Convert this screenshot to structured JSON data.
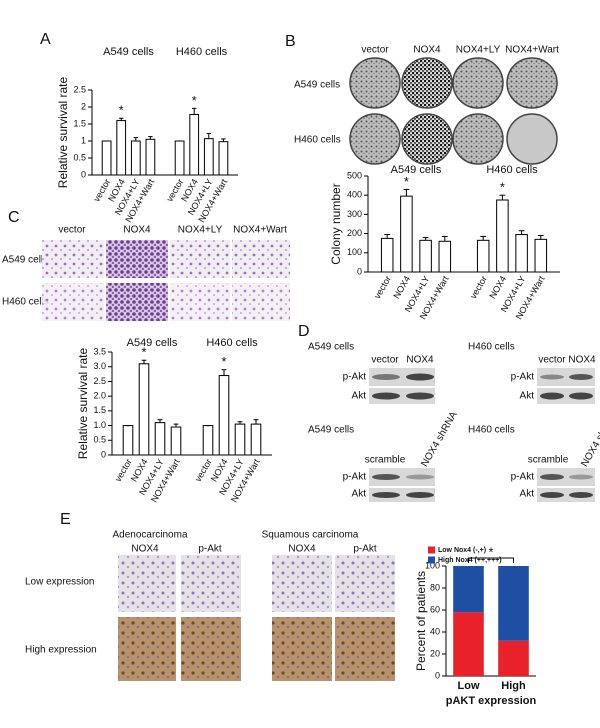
{
  "panel_labels": [
    "A",
    "B",
    "C",
    "D",
    "E"
  ],
  "panel_b": {
    "columns": [
      "vector",
      "NOX4",
      "NOX4+LY",
      "NOX4+Wart"
    ],
    "rows": [
      "A549 cells",
      "H460 cells"
    ]
  },
  "panel_c": {
    "columns": [
      "vector",
      "NOX4",
      "NOX4+LY",
      "NOX4+Wart"
    ],
    "rows": [
      "A549 cells",
      "H460 cells"
    ]
  },
  "panel_d": {
    "top_left": {
      "title": "A549 cells",
      "lanes": [
        "vector",
        "NOX4"
      ],
      "rows": [
        "p-Akt",
        "Akt"
      ]
    },
    "top_right": {
      "title": "H460 cells",
      "lanes": [
        "vector",
        "NOX4"
      ],
      "rows": [
        "p-Akt",
        "Akt"
      ]
    },
    "bottom_left": {
      "title": "A549 cells",
      "lanes": [
        "scramble",
        "NOX4 shRNA"
      ],
      "rows": [
        "p-Akt",
        "Akt"
      ]
    },
    "bottom_right": {
      "title": "H460 cells",
      "lanes": [
        "scramble",
        "NOX4 shRNA"
      ],
      "rows": [
        "p-Akt",
        "Akt"
      ]
    }
  },
  "panel_e": {
    "groups": [
      "Adenocarcinoma",
      "Squamous carcinoma"
    ],
    "stains": [
      "NOX4",
      "p-Akt",
      "NOX4",
      "p-Akt"
    ],
    "rows": [
      "Low expression",
      "High expression"
    ]
  },
  "chart_data": [
    {
      "type": "bar",
      "ylabel": "Relative survival rate",
      "groups": [
        "A549 cells",
        "H460 cells"
      ],
      "categories": [
        "vector",
        "NOX4",
        "NOX4+LY",
        "NOX4+Wart",
        "vector",
        "NOX4",
        "NOX4+LY",
        "NOX4+Wart"
      ],
      "values": [
        1,
        1.6,
        1.0,
        1.05,
        1,
        1.78,
        1.07,
        0.98
      ],
      "errors": [
        0,
        0.07,
        0.1,
        0.08,
        0,
        0.18,
        0.15,
        0.08
      ],
      "color": "#ffffff",
      "annotations": [
        "*",
        "*"
      ],
      "ylim": [
        0,
        2.5
      ],
      "yticks": [
        0,
        0.5,
        1,
        1.5,
        2,
        2.5
      ]
    },
    {
      "type": "bar",
      "ylabel": "Colony number",
      "groups": [
        "A549 cells",
        "H460 cells"
      ],
      "categories": [
        "vector",
        "NOX4",
        "NOX4+LY",
        "NOX4+Wart",
        "vector",
        "NOX4",
        "NOX4+LY",
        "NOX4+Wart"
      ],
      "values": [
        175,
        395,
        165,
        160,
        165,
        375,
        195,
        170
      ],
      "errors": [
        20,
        35,
        15,
        25,
        20,
        25,
        20,
        20
      ],
      "color": "#ffffff",
      "annotations": [
        "*",
        "*"
      ],
      "ylim": [
        0,
        500
      ],
      "yticks": [
        0,
        100,
        200,
        300,
        400,
        500
      ]
    },
    {
      "type": "bar",
      "ylabel": "Relative survival rate",
      "groups": [
        "A549 cells",
        "H460 cells"
      ],
      "categories": [
        "vector",
        "NOX4",
        "NOX4+LY",
        "NOX4+Wart",
        "vector",
        "NOX4",
        "NOX4+LY",
        "NOX4+Wart"
      ],
      "values": [
        1,
        3.1,
        1.1,
        0.95,
        1,
        2.7,
        1.05,
        1.05
      ],
      "errors": [
        0,
        0.12,
        0.1,
        0.1,
        0,
        0.2,
        0.08,
        0.15
      ],
      "color": "#ffffff",
      "annotations": [
        "*",
        "*"
      ],
      "ylim": [
        0,
        3.5
      ],
      "yticks": [
        0,
        0.5,
        {
          "value": 1,
          "label": "1.0"
        },
        1.5,
        {
          "value": 2,
          "label": "2.0"
        },
        2.5,
        {
          "value": 3,
          "label": "3.0"
        },
        3.5
      ]
    },
    {
      "type": "stacked_bar",
      "ylabel": "Percent of patients",
      "xlabel": "pAKT expression",
      "categories": [
        "Low",
        "High"
      ],
      "series": [
        {
          "name": "Low Nox4 (-,+)",
          "color": "#e8212a",
          "values": [
            58,
            32
          ]
        },
        {
          "name": "High Nox4 (++,+++)",
          "color": "#1e4fa3",
          "values": [
            42,
            68
          ]
        }
      ],
      "annotations": [
        "*"
      ],
      "ylim": [
        0,
        100
      ],
      "yticks": [
        0,
        20,
        40,
        60,
        80,
        100
      ]
    }
  ]
}
